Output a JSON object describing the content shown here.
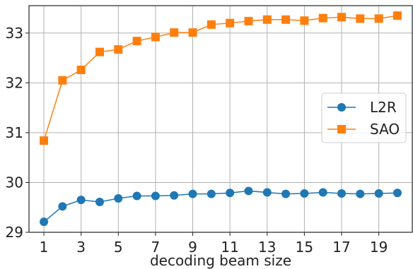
{
  "chart_data": {
    "type": "line",
    "title": "",
    "xlabel": "decoding beam size",
    "ylabel": "",
    "x": [
      1,
      2,
      3,
      4,
      5,
      6,
      7,
      8,
      9,
      10,
      11,
      12,
      13,
      14,
      15,
      16,
      17,
      18,
      19,
      20
    ],
    "xticks": [
      1,
      3,
      5,
      7,
      9,
      11,
      13,
      15,
      17,
      19
    ],
    "yticks": [
      29,
      30,
      31,
      32,
      33
    ],
    "xlim": [
      0.2,
      20.8
    ],
    "ylim": [
      29,
      33.55
    ],
    "grid": true,
    "legend_position": "center-right",
    "series": [
      {
        "name": "L2R",
        "color": "#1f77b4",
        "marker": "circle",
        "values": [
          29.21,
          29.52,
          29.65,
          29.61,
          29.68,
          29.73,
          29.73,
          29.74,
          29.77,
          29.77,
          29.79,
          29.83,
          29.8,
          29.77,
          29.78,
          29.8,
          29.78,
          29.77,
          29.78,
          29.79
        ]
      },
      {
        "name": "SAO",
        "color": "#ff7f0e",
        "marker": "square",
        "values": [
          30.84,
          32.05,
          32.26,
          32.62,
          32.67,
          32.84,
          32.92,
          33.01,
          33.01,
          33.17,
          33.2,
          33.24,
          33.27,
          33.27,
          33.25,
          33.3,
          33.32,
          33.29,
          33.29,
          33.35
        ]
      }
    ]
  }
}
